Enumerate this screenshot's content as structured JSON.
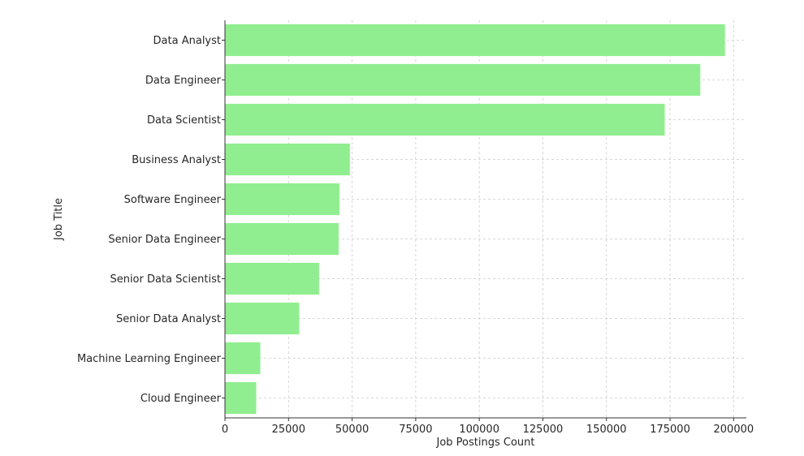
{
  "chart_data": {
    "type": "bar",
    "orientation": "horizontal",
    "title": "",
    "xlabel": "Job Postings Count",
    "ylabel": "Job Title",
    "categories": [
      "Data Analyst",
      "Data Engineer",
      "Data Scientist",
      "Business Analyst",
      "Software Engineer",
      "Senior Data Engineer",
      "Senior Data Scientist",
      "Senior Data Analyst",
      "Machine Learning Engineer",
      "Cloud Engineer"
    ],
    "values": [
      196600,
      186900,
      172900,
      49100,
      45000,
      44700,
      37000,
      29200,
      13900,
      12300
    ],
    "xlim": [
      0,
      205000
    ],
    "xticks": [
      0,
      25000,
      50000,
      75000,
      100000,
      125000,
      150000,
      175000,
      200000
    ],
    "xtick_labels": [
      "0",
      "25000",
      "50000",
      "75000",
      "100000",
      "125000",
      "150000",
      "175000",
      "200000"
    ],
    "grid": true,
    "bar_color": "#90ee90"
  }
}
